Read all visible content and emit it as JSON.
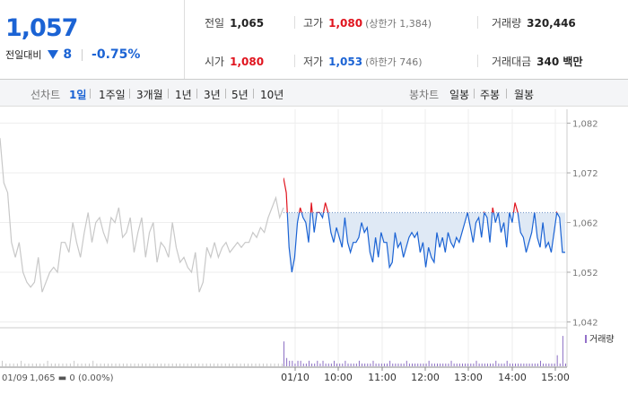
{
  "summary": {
    "current_price": "1,057",
    "change_label": "전일대비",
    "change_amount": "8",
    "change_percent": "-0.75%",
    "prev_close": {
      "label": "전일",
      "value": "1,065"
    },
    "open": {
      "label": "시가",
      "value": "1,080"
    },
    "high": {
      "label": "고가",
      "value": "1,080",
      "sub": "(상한가 1,384)"
    },
    "low": {
      "label": "저가",
      "value": "1,053",
      "sub": "(하한가 746)"
    },
    "volume": {
      "label": "거래량",
      "value": "320,446"
    },
    "trade_value": {
      "label": "거래대금",
      "value": "340 백만"
    }
  },
  "colors": {
    "up": "#e0141e",
    "down": "#1b63d4",
    "prev_line": "#c8c8c8"
  },
  "period_bar": {
    "line_label": "선차트",
    "line_tabs": [
      "1일",
      "1주일",
      "3개월",
      "1년",
      "3년",
      "5년",
      "10년"
    ],
    "line_active": "1일",
    "candle_label": "봉차트",
    "candle_tabs": [
      "일봉",
      "주봉",
      "월봉"
    ]
  },
  "chart_data": {
    "type": "line",
    "y_ticks": [
      "1,082",
      "1,072",
      "1,062",
      "1,052",
      "1,042"
    ],
    "ylim": [
      1041,
      1083
    ],
    "baseline": 1064,
    "x_ticks": [
      "01/10",
      "10:00",
      "11:00",
      "12:00",
      "13:00",
      "14:00",
      "15:00"
    ],
    "volume_legend": "거래량",
    "prev_day_label": "01/09",
    "prev_day_info": "1,065 ▬ 0 (0.00%)",
    "series": [
      {
        "name": "01/09",
        "values": [
          1079,
          1070,
          1068,
          1058,
          1055,
          1058,
          1052,
          1050,
          1049,
          1050,
          1055,
          1048,
          1050,
          1052,
          1053,
          1052,
          1058,
          1058,
          1056,
          1062,
          1058,
          1055,
          1060,
          1064,
          1058,
          1062,
          1063,
          1060,
          1058,
          1063,
          1062,
          1065,
          1059,
          1060,
          1063,
          1056,
          1060,
          1063,
          1055,
          1060,
          1062,
          1054,
          1058,
          1057,
          1055,
          1062,
          1057,
          1054,
          1055,
          1053,
          1052,
          1056,
          1048,
          1050,
          1057,
          1055,
          1058,
          1055,
          1057,
          1058,
          1056,
          1057,
          1058,
          1057,
          1058,
          1058,
          1060,
          1059,
          1061,
          1060,
          1063,
          1065,
          1067,
          1063,
          1065
        ]
      },
      {
        "name": "01/10",
        "values": [
          1071,
          1068,
          1057,
          1052,
          1055,
          1062,
          1065,
          1063,
          1062,
          1058,
          1066,
          1060,
          1064,
          1064,
          1063,
          1066,
          1064,
          1060,
          1058,
          1061,
          1059,
          1057,
          1063,
          1058,
          1056,
          1058,
          1058,
          1059,
          1062,
          1060,
          1061,
          1056,
          1054,
          1059,
          1055,
          1060,
          1058,
          1058,
          1053,
          1054,
          1060,
          1057,
          1058,
          1055,
          1057,
          1059,
          1060,
          1059,
          1060,
          1056,
          1058,
          1053,
          1057,
          1055,
          1054,
          1060,
          1057,
          1059,
          1056,
          1060,
          1058,
          1057,
          1059,
          1058,
          1060,
          1062,
          1064,
          1061,
          1058,
          1062,
          1063,
          1059,
          1064,
          1063,
          1058,
          1065,
          1062,
          1064,
          1060,
          1062,
          1057,
          1064,
          1062,
          1066,
          1064,
          1060,
          1059,
          1056,
          1058,
          1060,
          1064,
          1059,
          1057,
          1062,
          1057,
          1058,
          1056,
          1060,
          1064,
          1063,
          1056,
          1056
        ]
      }
    ],
    "volume": {
      "prev_day": [
        2,
        1,
        1,
        1,
        1,
        2,
        1,
        1,
        1,
        1,
        1,
        1,
        2,
        1,
        1,
        1,
        1,
        1,
        1,
        2,
        1,
        1,
        1,
        1,
        2,
        1,
        1,
        1,
        1,
        1,
        1,
        1,
        1,
        1,
        1,
        1,
        1,
        1,
        1,
        1,
        1,
        1,
        1,
        1,
        1,
        1,
        1,
        1,
        1,
        1,
        1,
        1,
        1,
        1,
        1,
        1,
        1,
        1,
        1,
        1,
        1,
        1,
        1,
        1,
        1,
        1,
        1,
        1,
        1,
        1,
        1,
        1,
        1,
        1,
        1
      ],
      "day": [
        9,
        3,
        2,
        2,
        1,
        2,
        2,
        1,
        1,
        2,
        1,
        1,
        2,
        1,
        2,
        1,
        1,
        1,
        2,
        1,
        1,
        1,
        2,
        1,
        1,
        1,
        1,
        2,
        1,
        1,
        1,
        1,
        2,
        1,
        1,
        1,
        1,
        1,
        2,
        1,
        1,
        1,
        1,
        1,
        2,
        1,
        1,
        1,
        1,
        1,
        1,
        1,
        2,
        1,
        1,
        1,
        1,
        1,
        1,
        1,
        2,
        1,
        1,
        1,
        1,
        1,
        1,
        1,
        1,
        2,
        1,
        1,
        1,
        1,
        1,
        1,
        2,
        1,
        1,
        1,
        2,
        1,
        1,
        1,
        1,
        1,
        1,
        1,
        1,
        1,
        1,
        1,
        2,
        1,
        1,
        1,
        1,
        1,
        4,
        1,
        11,
        1
      ]
    }
  }
}
